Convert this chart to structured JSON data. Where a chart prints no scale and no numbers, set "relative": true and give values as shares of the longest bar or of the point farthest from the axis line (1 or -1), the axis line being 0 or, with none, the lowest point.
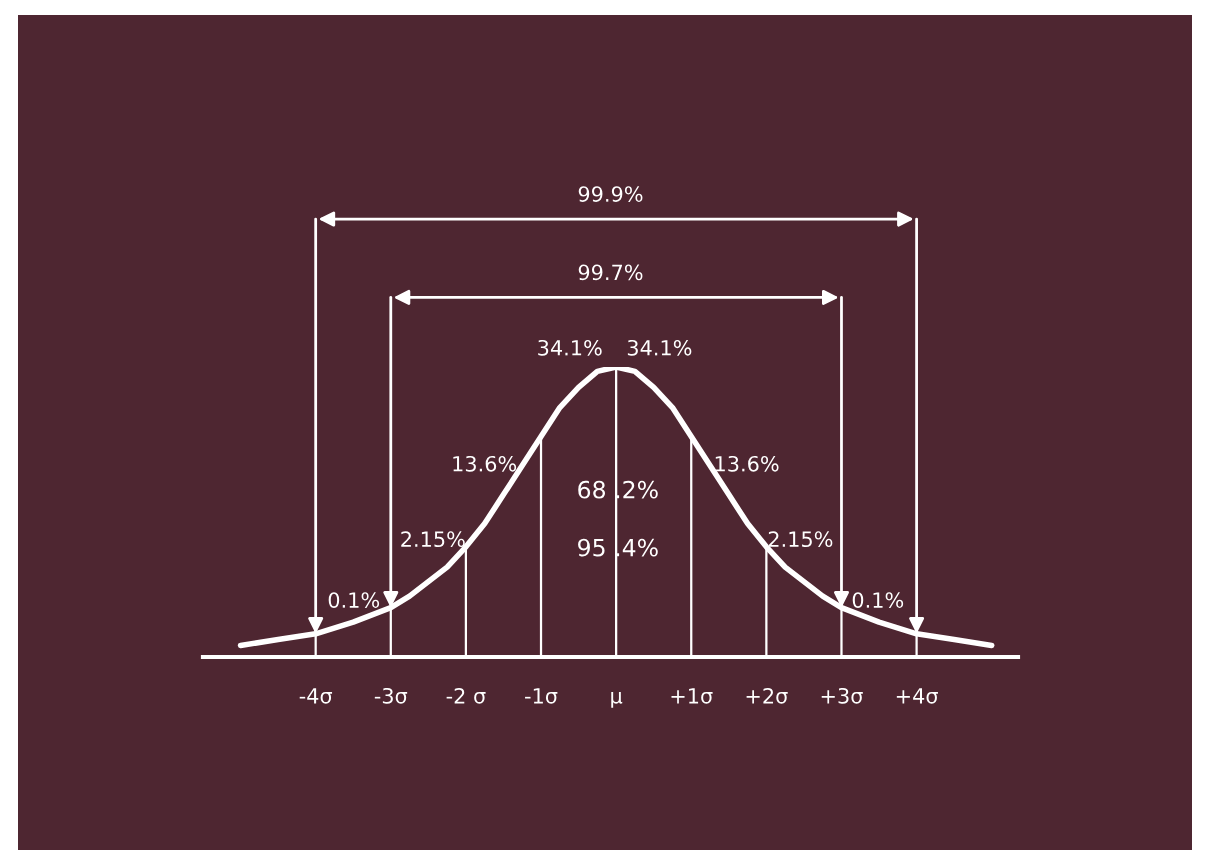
{
  "chart_data": {
    "type": "line",
    "relative": true,
    "x": [
      -5,
      -4.5,
      -4,
      -3.5,
      -3,
      -2.75,
      -2.5,
      -2.25,
      -2,
      -1.75,
      -1.5,
      -1.25,
      -1,
      -0.75,
      -0.5,
      -0.25,
      0,
      0.25,
      0.5,
      0.75,
      1,
      1.25,
      1.5,
      1.75,
      2,
      2.25,
      2.5,
      2.75,
      3,
      3.5,
      4,
      4.5,
      5
    ],
    "series": [
      {
        "color": "#ffffff",
        "values": [
          0.04,
          0.06,
          0.08,
          0.12,
          0.17,
          0.21,
          0.26,
          0.31,
          0.38,
          0.46,
          0.56,
          0.66,
          0.76,
          0.86,
          0.93,
          0.985,
          1.0,
          0.985,
          0.93,
          0.86,
          0.76,
          0.66,
          0.56,
          0.46,
          0.38,
          0.31,
          0.26,
          0.21,
          0.17,
          0.12,
          0.08,
          0.06,
          0.04
        ]
      },
      {
        "type": "bar",
        "color": "#ffffff",
        "x": [
          -4,
          -3,
          -2,
          -1,
          0,
          1,
          2,
          3,
          4
        ],
        "values": [
          0.08,
          0.17,
          0.38,
          0.76,
          1.0,
          0.76,
          0.38,
          0.17,
          0.08
        ]
      }
    ],
    "xlim": [
      -5.5,
      5.35
    ],
    "xticks": [
      {
        "value": -4,
        "label": "-4σ"
      },
      {
        "value": -3,
        "label": "-3σ"
      },
      {
        "value": -2,
        "label": "-2 σ"
      },
      {
        "value": -1,
        "label": "-1σ"
      },
      {
        "value": 0,
        "label": "μ"
      },
      {
        "value": 1,
        "label": "+1σ"
      },
      {
        "value": 2,
        "label": "+2σ"
      },
      {
        "value": 3,
        "label": "+3σ"
      },
      {
        "value": 4,
        "label": "+4σ"
      }
    ],
    "annotations": [
      "99.9%",
      "99.7%",
      "34.1%",
      "34.1%",
      "13.6%",
      "13.6%",
      "2.15%",
      "2.15%",
      "0.1%",
      "0.1%",
      "68 .2%",
      "95 .4%"
    ],
    "marker": "none",
    "line_style": "solid"
  }
}
